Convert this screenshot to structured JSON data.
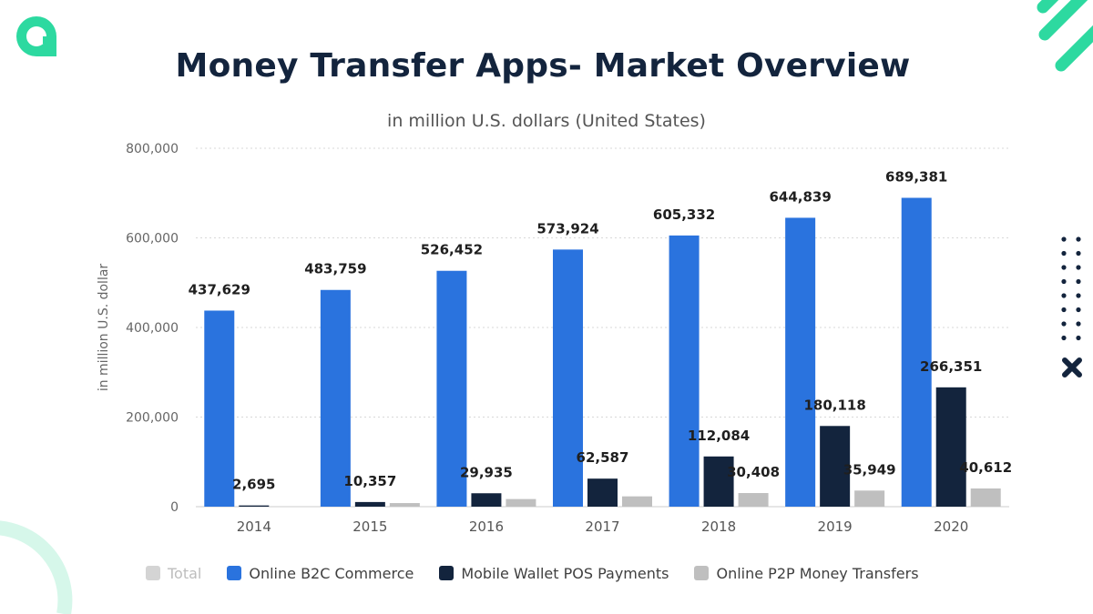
{
  "header": {
    "title": "Money Transfer Apps- Market Overview"
  },
  "brand": {
    "logo_icon": "a-letter-logo-icon",
    "accent": "#2dd9a0",
    "dark": "#13243d"
  },
  "chart_data": {
    "type": "bar",
    "subtitle": "in million U.S. dollars (United States)",
    "ylabel": "in million U.S. dollar",
    "xlabel": "",
    "ylim": [
      0,
      800000
    ],
    "yticks": [
      0,
      200000,
      400000,
      600000,
      800000
    ],
    "ytick_labels": [
      "0",
      "200,000",
      "400,000",
      "600,000",
      "800,000"
    ],
    "grid": true,
    "categories": [
      "2014",
      "2015",
      "2016",
      "2017",
      "2018",
      "2019",
      "2020"
    ],
    "series": [
      {
        "name": "Online B2C Commerce",
        "color": "#2a73de",
        "values": [
          437629,
          483759,
          526452,
          573924,
          605332,
          644839,
          689381
        ],
        "labels": [
          "437,629",
          "483,759",
          "526,452",
          "573,924",
          "605,332",
          "644,839",
          "689,381"
        ]
      },
      {
        "name": "Mobile Wallet POS Payments",
        "color": "#13243d",
        "values": [
          2695,
          10357,
          29935,
          62587,
          112084,
          180118,
          266351
        ],
        "labels": [
          "2,695",
          "10,357",
          "29,935",
          "62,587",
          "112,084",
          "180,118",
          "266,351"
        ]
      },
      {
        "name": "Online P2P Money Transfers",
        "color": "#bfbfbf",
        "values": [
          null,
          8000,
          17000,
          23000,
          30408,
          35949,
          40612
        ],
        "labels": [
          "",
          "",
          "",
          "",
          "30,408",
          "35,949",
          "40,612"
        ]
      }
    ],
    "legend": {
      "placement": "bottom",
      "items": [
        {
          "label": "Total",
          "color": "#d4d4d4",
          "muted": true
        },
        {
          "label": "Online B2C Commerce",
          "color": "#2a73de",
          "muted": false
        },
        {
          "label": "Mobile Wallet POS Payments",
          "color": "#13243d",
          "muted": false
        },
        {
          "label": "Online P2P Money Transfers",
          "color": "#bfbfbf",
          "muted": false
        }
      ]
    }
  }
}
